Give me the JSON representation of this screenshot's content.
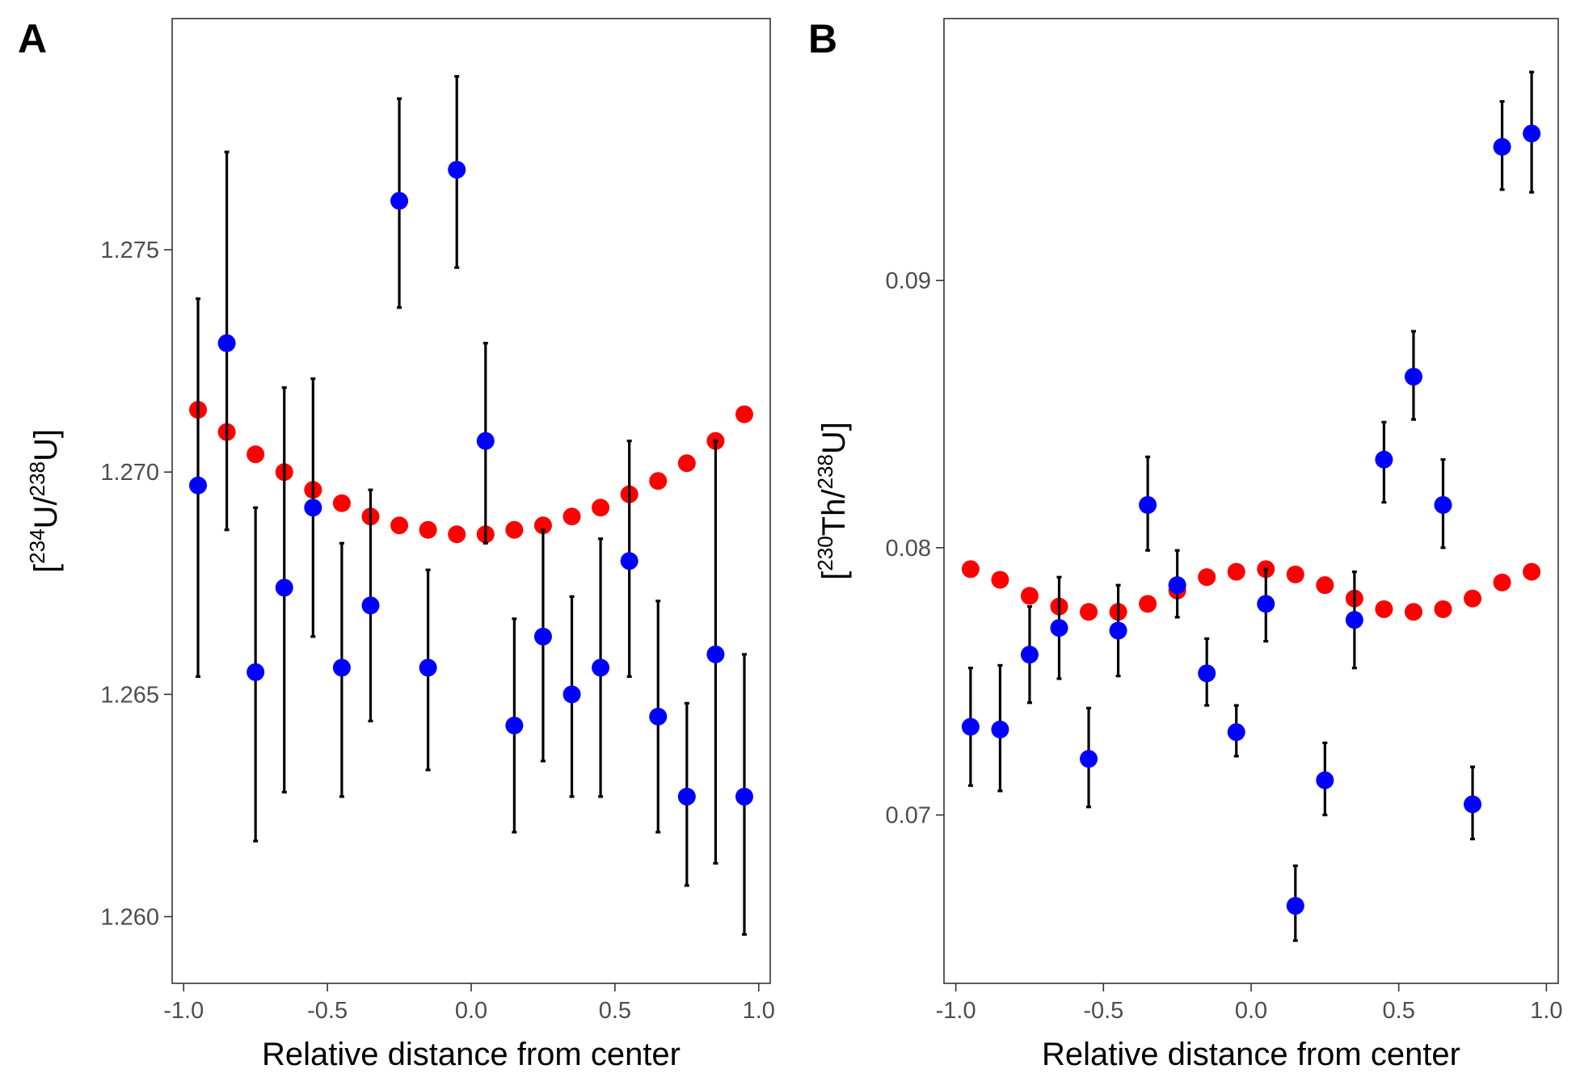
{
  "chart_data": [
    {
      "type": "scatter",
      "panel": "A",
      "xlabel": "Relative distance from center",
      "ylabel_parts": [
        "[",
        "234",
        "U/",
        "238",
        "U]"
      ],
      "xlim": [
        -1.04,
        1.04
      ],
      "ylim": [
        1.2585,
        1.2802
      ],
      "xticks": [
        -1.0,
        -0.5,
        0.0,
        0.5,
        1.0
      ],
      "xtick_labels": [
        "-1.0",
        "-0.5",
        "0.0",
        "0.5",
        "1.0"
      ],
      "yticks": [
        1.26,
        1.265,
        1.27,
        1.275
      ],
      "ytick_labels": [
        "1.260",
        "1.265",
        "1.270",
        "1.275"
      ],
      "series": [
        {
          "color": "#ff0000",
          "x": [
            -0.95,
            -0.85,
            -0.75,
            -0.65,
            -0.55,
            -0.45,
            -0.35,
            -0.25,
            -0.15,
            -0.05,
            0.05,
            0.15,
            0.25,
            0.35,
            0.45,
            0.55,
            0.65,
            0.75,
            0.85,
            0.95
          ],
          "y": [
            1.2714,
            1.2709,
            1.2704,
            1.27,
            1.2696,
            1.2693,
            1.269,
            1.2688,
            1.2687,
            1.2686,
            1.2686,
            1.2687,
            1.2688,
            1.269,
            1.2692,
            1.2695,
            1.2698,
            1.2702,
            1.2707,
            1.2713
          ]
        },
        {
          "color": "#0000ff",
          "x": [
            -0.95,
            -0.85,
            -0.75,
            -0.65,
            -0.55,
            -0.45,
            -0.35,
            -0.25,
            -0.05,
            0.05,
            -0.15,
            0.15,
            0.25,
            0.35,
            0.45,
            0.55,
            0.65,
            0.75,
            0.85,
            0.95
          ],
          "y": [
            1.2697,
            1.2729,
            1.2655,
            1.2674,
            1.2692,
            1.2656,
            1.267,
            1.2761,
            1.2768,
            1.2707,
            1.2656,
            1.2643,
            1.2663,
            1.265,
            1.2656,
            1.268,
            1.2645,
            1.2627,
            1.2659,
            1.2627
          ],
          "ymin": [
            1.2654,
            1.2687,
            1.2617,
            1.2628,
            1.2663,
            1.2627,
            1.2644,
            1.2737,
            1.2746,
            1.2684,
            1.2633,
            1.2619,
            1.2635,
            1.2627,
            1.2627,
            1.2654,
            1.2619,
            1.2607,
            1.2612,
            1.2596
          ],
          "ymax": [
            1.2739,
            1.2772,
            1.2692,
            1.2719,
            1.2721,
            1.2684,
            1.2696,
            1.2784,
            1.2789,
            1.2729,
            1.2678,
            1.2667,
            1.2687,
            1.2672,
            1.2685,
            1.2707,
            1.2671,
            1.2648,
            1.2707,
            1.2659
          ]
        }
      ]
    },
    {
      "type": "scatter",
      "panel": "B",
      "xlabel": "Relative distance from center",
      "ylabel_parts": [
        "[",
        "230",
        "Th/",
        "238",
        "U]"
      ],
      "xlim": [
        -1.04,
        1.04
      ],
      "ylim": [
        0.0637,
        0.0998
      ],
      "xticks": [
        -1.0,
        -0.5,
        0.0,
        0.5,
        1.0
      ],
      "xtick_labels": [
        "-1.0",
        "-0.5",
        "0.0",
        "0.5",
        "1.0"
      ],
      "yticks": [
        0.07,
        0.08,
        0.09
      ],
      "ytick_labels": [
        "0.07",
        "0.08",
        "0.09"
      ],
      "series": [
        {
          "color": "#ff0000",
          "x": [
            -0.95,
            -0.85,
            -0.75,
            -0.65,
            -0.55,
            -0.45,
            -0.35,
            -0.25,
            -0.15,
            -0.05,
            0.05,
            0.15,
            0.25,
            0.35,
            0.45,
            0.55,
            0.65,
            0.75,
            0.85,
            0.95
          ],
          "y": [
            0.0792,
            0.0788,
            0.0782,
            0.0778,
            0.0776,
            0.0776,
            0.0779,
            0.0784,
            0.0789,
            0.0791,
            0.0792,
            0.079,
            0.0786,
            0.0781,
            0.0777,
            0.0776,
            0.0777,
            0.0781,
            0.0787,
            0.0791
          ]
        },
        {
          "color": "#0000ff",
          "x": [
            -0.95,
            -0.85,
            -0.75,
            -0.65,
            -0.55,
            -0.45,
            -0.35,
            -0.25,
            -0.15,
            -0.05,
            0.05,
            0.15,
            0.25,
            0.35,
            0.45,
            0.55,
            0.65,
            0.75,
            0.85,
            0.95
          ],
          "y": [
            0.0733,
            0.0732,
            0.076,
            0.077,
            0.0721,
            0.0769,
            0.0816,
            0.0786,
            0.0753,
            0.0731,
            0.0779,
            0.0666,
            0.0713,
            0.0773,
            0.0833,
            0.0864,
            0.0816,
            0.0704,
            0.095,
            0.0955
          ],
          "ymin": [
            0.0711,
            0.0709,
            0.0742,
            0.0751,
            0.0703,
            0.0752,
            0.0799,
            0.0774,
            0.0741,
            0.0722,
            0.0765,
            0.0653,
            0.07,
            0.0755,
            0.0817,
            0.0848,
            0.08,
            0.0691,
            0.0934,
            0.0933
          ],
          "ymax": [
            0.0755,
            0.0756,
            0.0778,
            0.0789,
            0.074,
            0.0786,
            0.0834,
            0.0799,
            0.0766,
            0.0741,
            0.0792,
            0.0681,
            0.0727,
            0.0791,
            0.0847,
            0.0881,
            0.0833,
            0.0718,
            0.0967,
            0.0978
          ]
        }
      ]
    }
  ]
}
